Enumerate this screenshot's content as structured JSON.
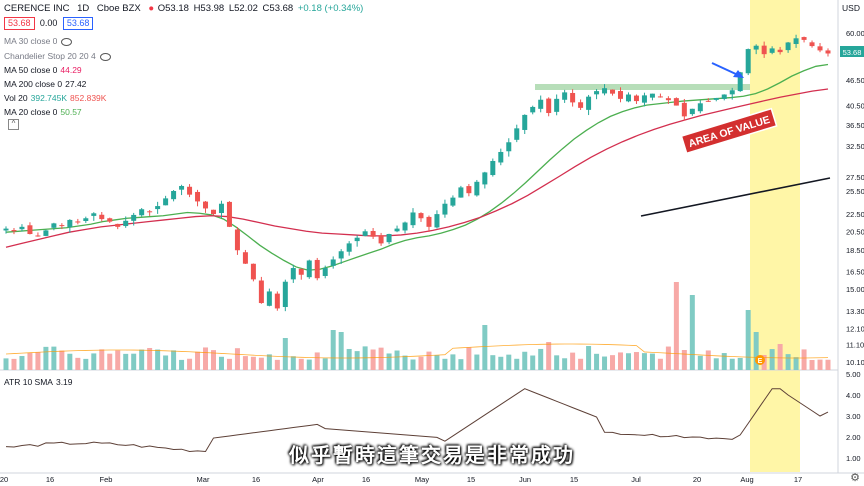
{
  "header": {
    "symbol": "CERENCE INC",
    "interval": "1D",
    "exchange": "Cboe BZX",
    "price_box": "53.68",
    "spread": "0.00",
    "price_box2": "53.68",
    "open": "O53.18",
    "high": "H53.98",
    "low": "L52.02",
    "close": "C53.68",
    "change": "+0.18 (+0.34%)",
    "currency": "USD"
  },
  "indicators": [
    {
      "label": "MA 30 close 0",
      "value": "",
      "color": "#787b86"
    },
    {
      "label": "Chandelier Stop 20 20 4",
      "value": "",
      "color": "#787b86"
    },
    {
      "label": "MA 50 close 0",
      "value": "44.29",
      "color": "#e91e63"
    },
    {
      "label": "MA 200 close 0",
      "value": "27.42",
      "color": "#131722"
    },
    {
      "label": "Vol 20",
      "value": "392.745K",
      "value2": "852.839K",
      "color": "#26a69a",
      "color2": "#ef5350"
    },
    {
      "label": "MA 20 close 0",
      "value": "50.57",
      "color": "#4caf50"
    }
  ],
  "atr": {
    "label": "ATR 10 SMA",
    "value": "3.19"
  },
  "annotation": {
    "text": "AREA OF VALUE"
  },
  "subtitle": "似乎暫時這筆交易是非常成功",
  "colors": {
    "up": "#26a69a",
    "down": "#ef5350",
    "ma20": "#4caf50",
    "ma50": "#d32f4f",
    "ma200": "#131722",
    "highlight": "#fff59d",
    "zone": "#a5d6a7",
    "arrow": "#2962ff",
    "price_tag": "#26a69a"
  },
  "chart_data": {
    "type": "candlestick",
    "y_axis_ticks": [
      "60.00",
      "46.50",
      "40.50",
      "36.50",
      "32.50",
      "27.50",
      "25.50",
      "22.50",
      "20.50",
      "18.50",
      "16.50",
      "15.00",
      "13.30",
      "12.10",
      "11.10",
      "10.10"
    ],
    "atr_axis_ticks": [
      "5.00",
      "4.00",
      "3.00",
      "2.00",
      "1.00"
    ],
    "x_axis_labels": [
      "20",
      "16",
      "Feb",
      "Mar",
      "16",
      "Apr",
      "16",
      "May",
      "15",
      "Jun",
      "15",
      "Jul",
      "20",
      "Aug",
      "17"
    ],
    "last_price": "53.68",
    "price_series": [
      20.8,
      20.5,
      21.0,
      20.2,
      20.0,
      20.6,
      21.4,
      21.1,
      21.8,
      21.5,
      22.0,
      22.6,
      21.9,
      21.6,
      21.0,
      21.7,
      22.4,
      23.1,
      22.8,
      23.5,
      24.5,
      25.5,
      26.2,
      25.0,
      24.1,
      23.2,
      22.5,
      23.8,
      21.0,
      18.5,
      17.2,
      15.8,
      13.9,
      14.8,
      13.5,
      15.6,
      16.8,
      16.2,
      17.5,
      15.9,
      16.8,
      17.6,
      18.4,
      19.2,
      19.8,
      20.5,
      19.9,
      19.2,
      20.2,
      20.8,
      21.5,
      22.7,
      22.0,
      21.0,
      22.5,
      23.8,
      24.6,
      26.0,
      25.2,
      26.8,
      28.2,
      30.0,
      31.5,
      33.2,
      35.8,
      38.5,
      40.2,
      41.8,
      38.9,
      42.0,
      43.5,
      41.2,
      40.0,
      42.5,
      43.8,
      44.5,
      43.2,
      42.0,
      43.0,
      41.5,
      42.8,
      43.2,
      42.4,
      41.7,
      40.5,
      38.2,
      39.8,
      41.0,
      41.5,
      42.2,
      43.0,
      44.0,
      48.5,
      55.0,
      56.0,
      53.5,
      55.2,
      54.1,
      57.0,
      58.3,
      57.8,
      55.9,
      54.6,
      53.7
    ],
    "ma20": [
      20.4,
      20.5,
      20.6,
      20.7,
      20.8,
      20.9,
      21.1,
      21.3,
      21.6,
      21.8,
      22.0,
      22.1,
      22.2,
      22.3,
      22.5,
      22.7,
      22.6,
      22.4,
      21.9,
      21.0,
      20.0,
      19.0,
      18.2,
      17.5,
      16.9,
      16.6,
      16.7,
      17.0,
      17.4,
      17.8,
      18.2,
      18.6,
      19.1,
      19.5,
      19.8,
      20.0,
      20.3,
      20.7,
      21.2,
      21.9,
      22.8,
      23.9,
      25.2,
      26.7,
      28.4,
      30.2,
      32.0,
      33.8,
      35.4,
      36.9,
      38.2,
      39.2,
      40.0,
      40.6,
      40.9,
      41.2,
      41.5,
      41.7,
      41.9,
      42.1,
      42.3,
      42.6,
      43.2,
      44.3,
      45.8,
      47.5,
      48.9,
      50.1,
      50.6
    ],
    "ma50": [
      18.8,
      19.2,
      19.6,
      20.0,
      20.4,
      20.7,
      21.0,
      21.2,
      21.4,
      21.6,
      21.8,
      22.0,
      22.2,
      22.3,
      22.2,
      21.9,
      21.5,
      21.1,
      20.8,
      20.5,
      20.3,
      20.2,
      20.1,
      20.0,
      20.0,
      20.1,
      20.3,
      20.6,
      21.0,
      21.5,
      22.1,
      22.9,
      23.8,
      24.9,
      26.2,
      27.6,
      29.1,
      30.6,
      32.0,
      33.3,
      34.5,
      35.6,
      36.6,
      37.5,
      38.4,
      39.2,
      40.0,
      40.8,
      41.6,
      42.4,
      43.1,
      43.8,
      44.3
    ]
  }
}
